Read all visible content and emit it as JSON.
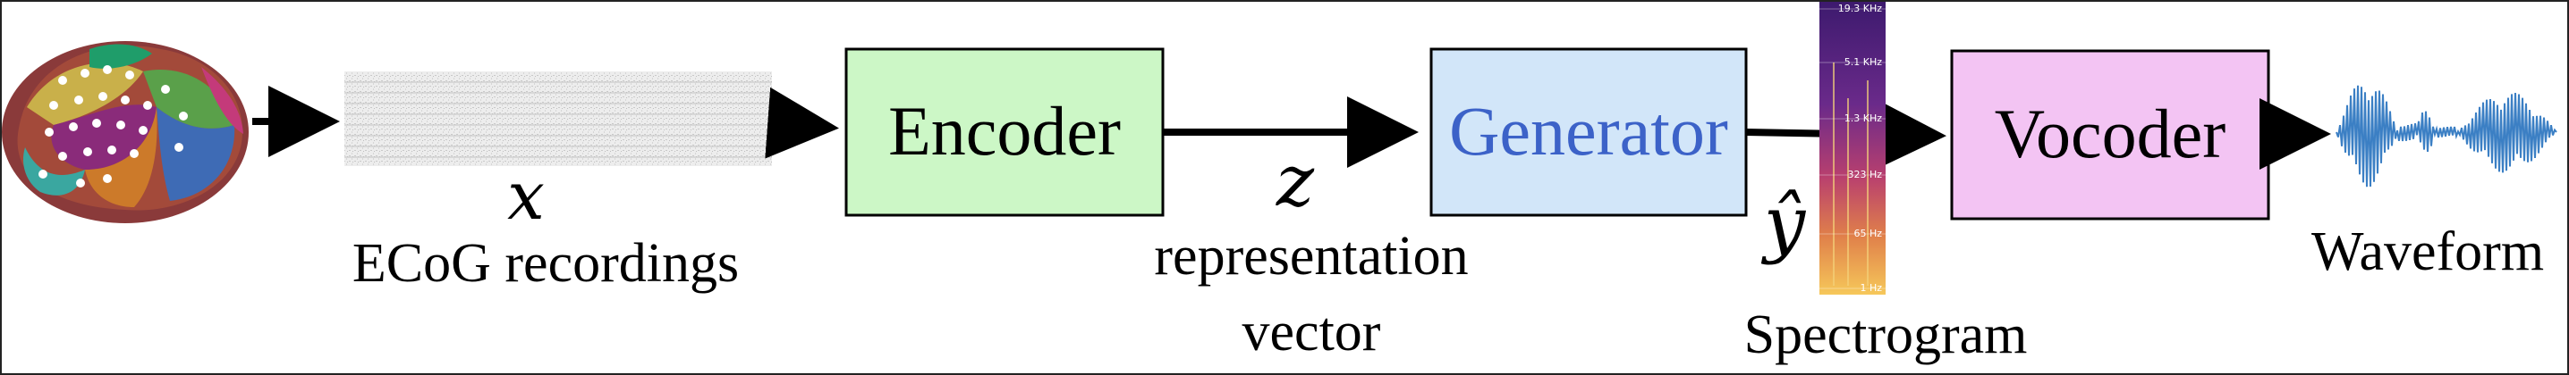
{
  "nodes": {
    "encoder": "Encoder",
    "generator": "Generator",
    "vocoder": "Vocoder"
  },
  "symbols": {
    "x": "x",
    "z": "z",
    "y_hat": "ŷ"
  },
  "captions": {
    "ecog": "ECoG recordings",
    "representation_line1": "representation",
    "representation_line2": "vector",
    "spectrogram": "Spectrogram",
    "waveform": "Waveform"
  },
  "spectrogram_ticks": [
    "19.3 KHz",
    "5.1 KHz",
    "1.3 KHz",
    "323 Hz",
    "65 Hz",
    "1 Hz"
  ],
  "colors": {
    "encoder_fill": "#ccf7c6",
    "generator_fill": "#d2e6f9",
    "generator_text": "#3c62c8",
    "vocoder_fill": "#f3c4f3",
    "arrow": "#000000",
    "waveform": "#3b7fc4"
  }
}
